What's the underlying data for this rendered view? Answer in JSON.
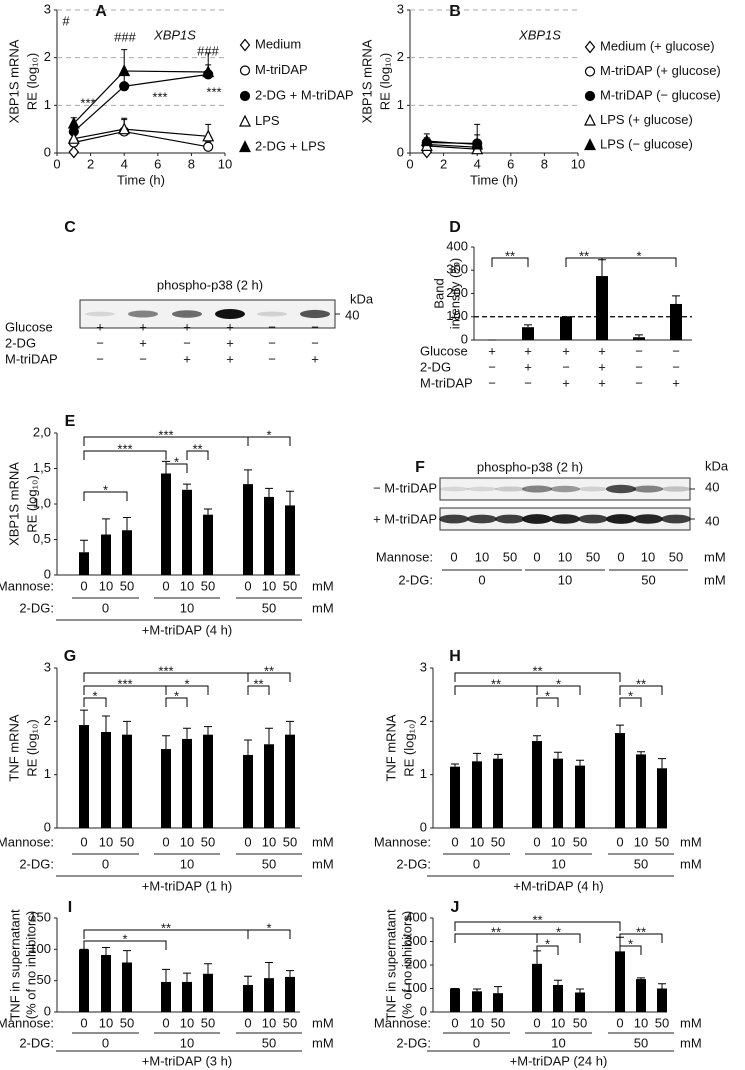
{
  "chart_data": [
    {
      "panel": "A",
      "type": "line",
      "title": "XBP1S",
      "ylabel": [
        "XBP1S mRNA",
        "RE (log₁₀)"
      ],
      "xlabel": "Time (h)",
      "xlim": [
        0,
        10
      ],
      "xticks": [
        0,
        2,
        4,
        6,
        8,
        10
      ],
      "ylim": [
        0,
        3
      ],
      "yticks": [
        0,
        1,
        2,
        3
      ],
      "grid": true,
      "color": "#000000",
      "series": [
        {
          "name": "Medium",
          "marker": "diamond",
          "filled": false,
          "x": [
            1
          ],
          "values": [
            0.02
          ],
          "errors": [
            0.02
          ]
        },
        {
          "name": "M-triDAP",
          "marker": "circle",
          "filled": false,
          "x": [
            1,
            4,
            9
          ],
          "values": [
            0.22,
            0.45,
            0.13
          ],
          "errors": [
            0.08,
            0.28,
            0.1
          ]
        },
        {
          "name": "2-DG + M-triDAP",
          "marker": "circle",
          "filled": true,
          "x": [
            1,
            4,
            9
          ],
          "values": [
            0.45,
            1.4,
            1.65
          ],
          "errors": [
            0.1,
            0.3,
            0.2
          ]
        },
        {
          "name": "LPS",
          "marker": "triangle",
          "filled": false,
          "x": [
            1,
            4,
            9
          ],
          "values": [
            0.3,
            0.5,
            0.35
          ],
          "errors": [
            0.1,
            0.2,
            0.25
          ]
        },
        {
          "name": "2-DG + LPS",
          "marker": "triangle",
          "filled": true,
          "x": [
            1,
            4,
            9
          ],
          "values": [
            0.62,
            1.72,
            1.7
          ],
          "errors": [
            0.12,
            0.45,
            0.4
          ]
        }
      ],
      "annotations": [
        "#",
        "###",
        "###",
        "***",
        "***",
        "***"
      ]
    },
    {
      "panel": "B",
      "type": "line",
      "title": "XBP1S",
      "ylabel": [
        "XBP1S mRNA",
        "RE (log₁₀)"
      ],
      "xlabel": "Time (h)",
      "xlim": [
        0,
        10
      ],
      "xticks": [
        0,
        2,
        4,
        6,
        8,
        10
      ],
      "ylim": [
        0,
        3
      ],
      "yticks": [
        0,
        1,
        2,
        3
      ],
      "grid": true,
      "color": "#000000",
      "series": [
        {
          "name": "Medium (+ glucose)",
          "marker": "diamond",
          "filled": false,
          "x": [
            1
          ],
          "values": [
            0.02
          ],
          "errors": [
            0.02
          ]
        },
        {
          "name": "M-triDAP (+ glucose)",
          "marker": "circle",
          "filled": false,
          "x": [
            1,
            4
          ],
          "values": [
            0.18,
            0.12
          ],
          "errors": [
            0.08,
            0.1
          ]
        },
        {
          "name": "M-triDAP (− glucose)",
          "marker": "circle",
          "filled": true,
          "x": [
            1,
            4
          ],
          "values": [
            0.22,
            0.2
          ],
          "errors": [
            0.1,
            0.4
          ]
        },
        {
          "name": "LPS (+ glucose)",
          "marker": "triangle",
          "filled": false,
          "x": [
            1,
            4
          ],
          "values": [
            0.15,
            0.08
          ],
          "errors": [
            0.1,
            0.1
          ]
        },
        {
          "name": "LPS (− glucose)",
          "marker": "triangle",
          "filled": true,
          "x": [
            1,
            4
          ],
          "values": [
            0.25,
            0.18
          ],
          "errors": [
            0.15,
            0.2
          ]
        }
      ]
    },
    {
      "panel": "C",
      "type": "blot",
      "title": "phospho-p38 (2 h)",
      "unit_label": "kDa",
      "size_labels": [
        "40"
      ],
      "conditions": [
        {
          "label": "Glucose",
          "values": [
            "+",
            "+",
            "+",
            "+",
            "−",
            "−"
          ]
        },
        {
          "label": "2-DG",
          "values": [
            "−",
            "+",
            "−",
            "+",
            "−",
            "−"
          ]
        },
        {
          "label": "M-triDAP",
          "values": [
            "−",
            "−",
            "+",
            "+",
            "−",
            "+"
          ]
        }
      ]
    },
    {
      "panel": "D",
      "type": "bar",
      "ylabel": [
        "Band",
        "intensity (%)"
      ],
      "ylim": [
        0,
        400
      ],
      "yticks": [
        0,
        100,
        200,
        300,
        400
      ],
      "color": "#000000",
      "reference_line": 100,
      "values": [
        0,
        55,
        100,
        275,
        12,
        155
      ],
      "errors": [
        0,
        10,
        0,
        70,
        10,
        35
      ],
      "significance": [
        "**",
        "**",
        "*"
      ],
      "conditions": [
        {
          "label": "Glucose",
          "values": [
            "+",
            "+",
            "+",
            "+",
            "−",
            "−"
          ]
        },
        {
          "label": "2-DG",
          "values": [
            "−",
            "+",
            "−",
            "+",
            "−",
            "−"
          ]
        },
        {
          "label": "M-triDAP",
          "values": [
            "−",
            "−",
            "+",
            "+",
            "−",
            "+"
          ]
        }
      ]
    },
    {
      "panel": "E",
      "type": "bar",
      "ylabel": [
        "XBP1S mRNA",
        "RE (log₁₀)"
      ],
      "ylim": [
        0,
        2
      ],
      "yticks": [
        0,
        {
          "value": 0.5,
          "label": "0,5"
        },
        {
          "value": 1,
          "label": "1,0"
        },
        {
          "value": 1.5,
          "label": "1,5"
        },
        {
          "value": 2,
          "label": "2,0"
        }
      ],
      "color": "#000000",
      "values": [
        0.32,
        0.57,
        0.63,
        1.43,
        1.2,
        0.85,
        1.28,
        1.1,
        0.98
      ],
      "errors": [
        0.17,
        0.22,
        0.18,
        0.17,
        0.08,
        0.08,
        0.2,
        0.12,
        0.2
      ],
      "significance": [
        "***",
        "*",
        "***",
        "*",
        "**",
        "*"
      ],
      "conditions": [
        {
          "label": "Mannose:",
          "values": [
            "0",
            "10",
            "50",
            "0",
            "10",
            "50",
            "0",
            "10",
            "50"
          ],
          "unit": "mM"
        },
        {
          "label": "2-DG:",
          "values": [
            "0",
            "10",
            "50"
          ],
          "unit": "mM"
        }
      ],
      "footer": "+M-triDAP (4 h)"
    },
    {
      "panel": "F",
      "type": "blot",
      "title": "phospho-p38 (2 h)",
      "unit_label": "kDa",
      "size_labels": [
        "40",
        "40"
      ],
      "row_labels": [
        "− M-triDAP",
        "+ M-triDAP"
      ],
      "conditions": [
        {
          "label": "Mannose:",
          "values": [
            "0",
            "10",
            "50",
            "0",
            "10",
            "50",
            "0",
            "10",
            "50"
          ],
          "unit": "mM"
        },
        {
          "label": "2-DG:",
          "values": [
            "0",
            "10",
            "50"
          ],
          "unit": "mM"
        }
      ]
    },
    {
      "panel": "G",
      "type": "bar",
      "ylabel": [
        "TNF mRNA",
        "RE (log₁₀)"
      ],
      "ylim": [
        0,
        3
      ],
      "yticks": [
        0,
        1,
        2,
        3
      ],
      "color": "#000000",
      "values": [
        1.93,
        1.8,
        1.75,
        1.48,
        1.67,
        1.75,
        1.37,
        1.57,
        1.75
      ],
      "errors": [
        0.28,
        0.3,
        0.25,
        0.25,
        0.2,
        0.15,
        0.28,
        0.3,
        0.25
      ],
      "significance": [
        "***",
        "**",
        "*",
        "***",
        "*",
        "*",
        "**"
      ],
      "conditions": [
        {
          "label": "Mannose:",
          "values": [
            "0",
            "10",
            "50",
            "0",
            "10",
            "50",
            "0",
            "10",
            "50"
          ],
          "unit": "mM"
        },
        {
          "label": "2-DG:",
          "values": [
            "0",
            "10",
            "50"
          ],
          "unit": "mM"
        }
      ],
      "footer": "+M-triDAP (1 h)"
    },
    {
      "panel": "H",
      "type": "bar",
      "ylabel": [
        "TNF mRNA",
        "RE (log₁₀)"
      ],
      "ylim": [
        0,
        3
      ],
      "yticks": [
        0,
        1,
        2,
        3
      ],
      "color": "#000000",
      "values": [
        1.15,
        1.25,
        1.3,
        1.63,
        1.3,
        1.17,
        1.78,
        1.38,
        1.12
      ],
      "errors": [
        0.05,
        0.15,
        0.08,
        0.1,
        0.12,
        0.1,
        0.15,
        0.05,
        0.18
      ],
      "significance": [
        "**",
        "**",
        "*",
        "*",
        "*",
        "**"
      ],
      "conditions": [
        {
          "label": "Mannose:",
          "values": [
            "0",
            "10",
            "50",
            "0",
            "10",
            "50",
            "0",
            "10",
            "50"
          ],
          "unit": "mM"
        },
        {
          "label": "2-DG:",
          "values": [
            "0",
            "10",
            "50"
          ],
          "unit": "mM"
        }
      ],
      "footer": "+M-triDAP (4 h)"
    },
    {
      "panel": "I",
      "type": "bar",
      "ylabel": [
        "TNF in supernatant",
        "(% of no inhibitors)"
      ],
      "ylim": [
        0,
        150
      ],
      "yticks": [
        0,
        50,
        100,
        150
      ],
      "color": "#000000",
      "values": [
        100,
        91,
        79,
        48,
        48,
        61,
        43,
        54,
        56
      ],
      "errors": [
        0,
        12,
        19,
        20,
        14,
        16,
        14,
        25,
        10
      ],
      "significance": [
        "*",
        "**",
        "*"
      ],
      "conditions": [
        {
          "label": "Mannose:",
          "values": [
            "0",
            "10",
            "50",
            "0",
            "10",
            "50",
            "0",
            "10",
            "50"
          ],
          "unit": "mM"
        },
        {
          "label": "2-DG:",
          "values": [
            "0",
            "10",
            "50"
          ],
          "unit": "mM"
        }
      ],
      "footer": "+M-triDAP (3 h)"
    },
    {
      "panel": "J",
      "type": "bar",
      "ylabel": [
        "TNF in supernatant",
        "(% of no inhibitors)"
      ],
      "ylim": [
        0,
        400
      ],
      "yticks": [
        0,
        100,
        200,
        300,
        400
      ],
      "color": "#000000",
      "values": [
        100,
        88,
        80,
        205,
        115,
        83,
        258,
        140,
        100
      ],
      "errors": [
        0,
        10,
        28,
        55,
        20,
        15,
        60,
        5,
        20
      ],
      "significance": [
        "**",
        "**",
        "*",
        "*",
        "*",
        "**"
      ],
      "conditions": [
        {
          "label": "Mannose:",
          "values": [
            "0",
            "10",
            "50",
            "0",
            "10",
            "50",
            "0",
            "10",
            "50"
          ],
          "unit": "mM"
        },
        {
          "label": "2-DG:",
          "values": [
            "0",
            "10",
            "50"
          ],
          "unit": "mM"
        }
      ],
      "footer": "+M-triDAP (24 h)"
    }
  ]
}
